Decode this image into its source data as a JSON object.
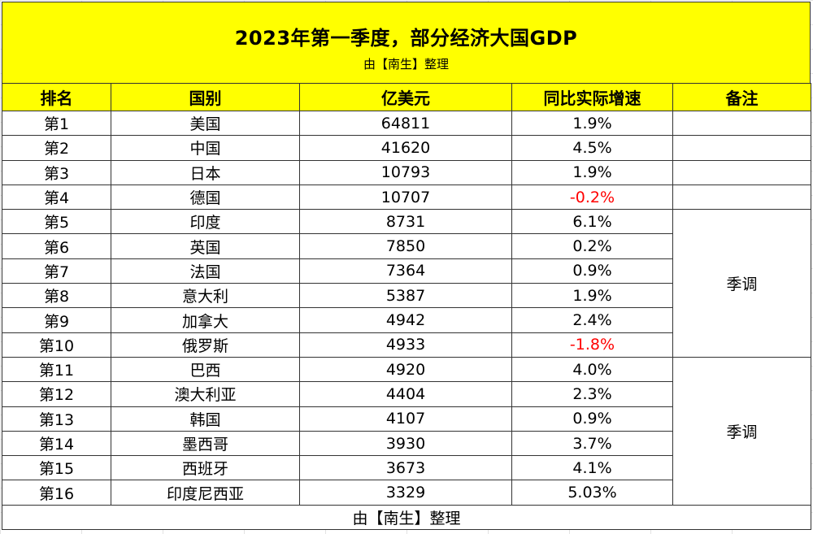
{
  "title": "2023年第一季度，部分经济大国GDP",
  "subtitle": "由【南生】整理",
  "headers": {
    "rank": "排名",
    "country": "国别",
    "usd": "亿美元",
    "growth": "同比实际增速",
    "note": "备注"
  },
  "rows": [
    {
      "rank": "第1",
      "country": "美国",
      "usd": "64811",
      "growth": "1.9%"
    },
    {
      "rank": "第2",
      "country": "中国",
      "usd": "41620",
      "growth": "4.5%"
    },
    {
      "rank": "第3",
      "country": "日本",
      "usd": "10793",
      "growth": "1.9%"
    },
    {
      "rank": "第4",
      "country": "德国",
      "usd": "10707",
      "growth": "-0.2%"
    },
    {
      "rank": "第5",
      "country": "印度",
      "usd": "8731",
      "growth": "6.1%"
    },
    {
      "rank": "第6",
      "country": "英国",
      "usd": "7850",
      "growth": "0.2%"
    },
    {
      "rank": "第7",
      "country": "法国",
      "usd": "7364",
      "growth": "0.9%"
    },
    {
      "rank": "第8",
      "country": "意大利",
      "usd": "5387",
      "growth": "1.9%"
    },
    {
      "rank": "第9",
      "country": "加拿大",
      "usd": "4942",
      "growth": "2.4%"
    },
    {
      "rank": "第10",
      "country": "俄罗斯",
      "usd": "4933",
      "growth": "-1.8%"
    },
    {
      "rank": "第11",
      "country": "巴西",
      "usd": "4920",
      "growth": "4.0%"
    },
    {
      "rank": "第12",
      "country": "澳大利亚",
      "usd": "4404",
      "growth": "2.3%"
    },
    {
      "rank": "第13",
      "country": "韩国",
      "usd": "4107",
      "growth": "0.9%"
    },
    {
      "rank": "第14",
      "country": "墨西哥",
      "usd": "3930",
      "growth": "3.7%"
    },
    {
      "rank": "第15",
      "country": "西班牙",
      "usd": "3673",
      "growth": "4.1%"
    },
    {
      "rank": "第16",
      "country": "印度尼西亚",
      "usd": "3329",
      "growth": "5.03%"
    }
  ],
  "notes": {
    "group1": "季调",
    "group2": "季调"
  },
  "footer": "由【南生】整理",
  "colors": {
    "header_bg": "#ffff00",
    "negative": "#ff0000"
  }
}
